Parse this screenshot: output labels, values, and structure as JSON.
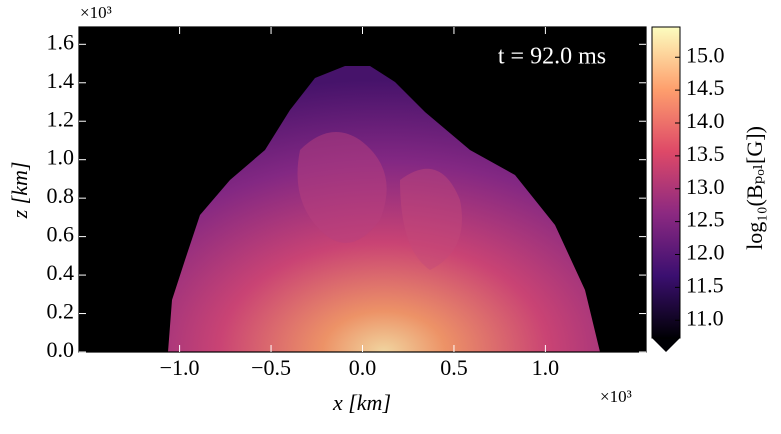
{
  "chart_data": {
    "type": "heatmap",
    "annotation": "t  =  92.0 ms",
    "x_label": "x [km]",
    "y_label": "z [km]",
    "x_offset_text": "×10³",
    "y_offset_text": "×10³",
    "xlim": [
      -1.55,
      1.55
    ],
    "ylim": [
      0,
      1.69
    ],
    "xticks": [
      {
        "value": -1.0,
        "label": "−1.0"
      },
      {
        "value": -0.5,
        "label": "−0.5"
      },
      {
        "value": 0,
        "label": "0.0"
      },
      {
        "value": 0.5,
        "label": "0.5"
      },
      {
        "value": 1.0,
        "label": "1.0"
      }
    ],
    "yticks": [
      {
        "value": 0,
        "label": "0.0"
      },
      {
        "value": 0.2,
        "label": "0.2"
      },
      {
        "value": 0.4,
        "label": "0.4"
      },
      {
        "value": 0.6,
        "label": "0.6"
      },
      {
        "value": 0.8,
        "label": "0.8"
      },
      {
        "value": 1.0,
        "label": "1.0"
      },
      {
        "value": 1.2,
        "label": "1.2"
      },
      {
        "value": 1.4,
        "label": "1.4"
      },
      {
        "value": 1.6,
        "label": "1.6"
      }
    ],
    "colorbar": {
      "label": "log₁₀(Bₚₒₗ[G])",
      "clim": [
        10.73,
        15.46
      ],
      "ticks": [
        {
          "value": 11.0,
          "label": "11.0"
        },
        {
          "value": 11.5,
          "label": "11.5"
        },
        {
          "value": 12.0,
          "label": "12.0"
        },
        {
          "value": 12.5,
          "label": "12.5"
        },
        {
          "value": 13.0,
          "label": "13.0"
        },
        {
          "value": 13.5,
          "label": "13.5"
        },
        {
          "value": 14.0,
          "label": "14.0"
        },
        {
          "value": 14.5,
          "label": "14.5"
        },
        {
          "value": 15.0,
          "label": "15.0"
        }
      ],
      "colors": [
        "#000004",
        "#3b0f70",
        "#8c2981",
        "#de4968",
        "#fe9f6d",
        "#fcfdbf"
      ]
    }
  }
}
